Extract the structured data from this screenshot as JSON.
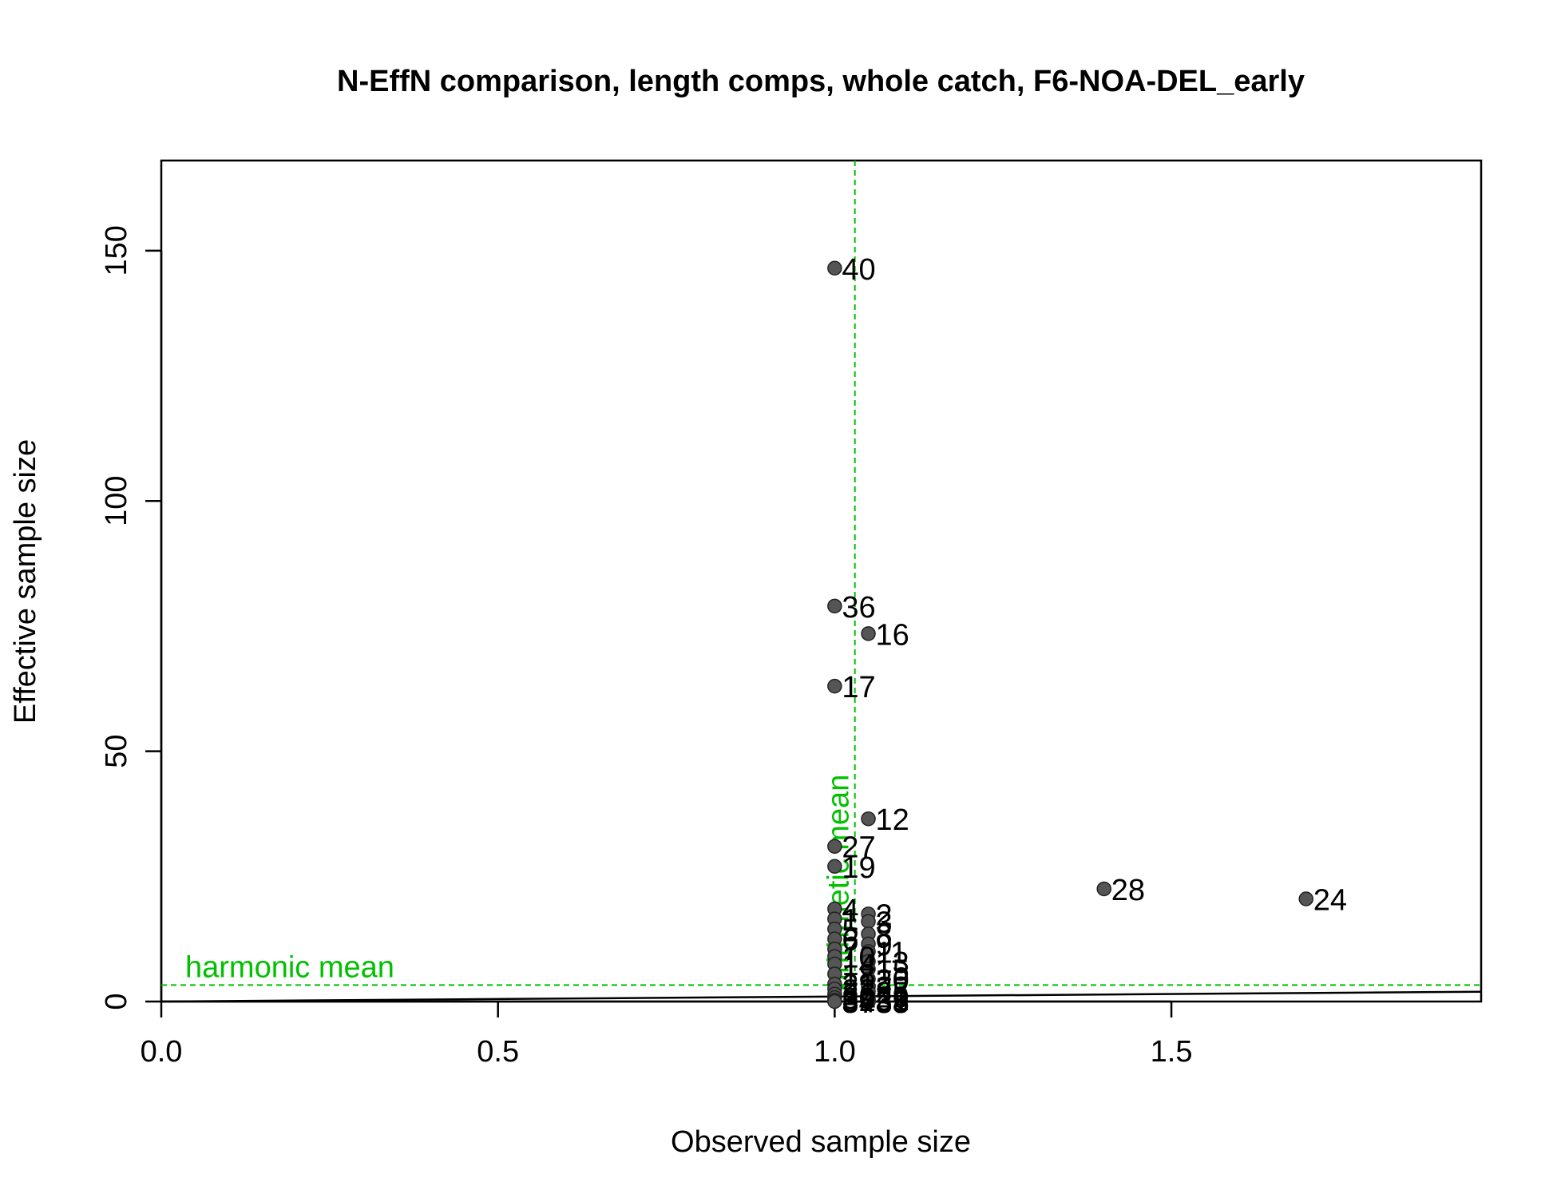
{
  "chart_data": {
    "type": "scatter",
    "title": "N-EffN comparison, length comps, whole catch, F6-NOA-DEL_early",
    "xlabel": "Observed sample size",
    "ylabel": "Effective sample size",
    "xlim": [
      0,
      1.96
    ],
    "ylim": [
      0,
      168
    ],
    "xticks": [
      0.0,
      0.5,
      1.0,
      1.5
    ],
    "xtick_labels": [
      "0.0",
      "0.5",
      "1.0",
      "1.5"
    ],
    "yticks": [
      0,
      50,
      100,
      150
    ],
    "ytick_labels": [
      "0",
      "50",
      "100",
      "150"
    ],
    "grid": false,
    "point_color": "#555555",
    "reference_color": "#00c000",
    "points": [
      {
        "x": 1.0,
        "y": 146.5,
        "label": "40"
      },
      {
        "x": 1.0,
        "y": 79.0,
        "label": "36"
      },
      {
        "x": 1.05,
        "y": 73.5,
        "label": "16"
      },
      {
        "x": 1.0,
        "y": 63.0,
        "label": "17"
      },
      {
        "x": 1.05,
        "y": 36.5,
        "label": "12"
      },
      {
        "x": 1.0,
        "y": 31.0,
        "label": "27"
      },
      {
        "x": 1.0,
        "y": 27.0,
        "label": "19"
      },
      {
        "x": 1.4,
        "y": 22.5,
        "label": "28"
      },
      {
        "x": 1.7,
        "y": 20.5,
        "label": "24"
      },
      {
        "x": 1.0,
        "y": 18.5,
        "label": "4"
      },
      {
        "x": 1.05,
        "y": 17.5,
        "label": "2"
      },
      {
        "x": 1.0,
        "y": 16.5,
        "label": "1"
      },
      {
        "x": 1.05,
        "y": 16.0,
        "label": "3"
      },
      {
        "x": 1.0,
        "y": 14.5,
        "label": "5"
      },
      {
        "x": 1.05,
        "y": 13.5,
        "label": "8"
      },
      {
        "x": 1.0,
        "y": 12.5,
        "label": "6"
      },
      {
        "x": 1.05,
        "y": 11.5,
        "label": "9"
      },
      {
        "x": 1.0,
        "y": 10.5,
        "label": "7"
      },
      {
        "x": 1.05,
        "y": 10.0,
        "label": "11"
      },
      {
        "x": 1.0,
        "y": 9.0,
        "label": "10"
      },
      {
        "x": 1.05,
        "y": 8.0,
        "label": "13"
      },
      {
        "x": 1.0,
        "y": 7.5,
        "label": "14"
      },
      {
        "x": 1.05,
        "y": 6.5,
        "label": "15"
      },
      {
        "x": 1.0,
        "y": 5.5,
        "label": "18"
      },
      {
        "x": 1.05,
        "y": 4.5,
        "label": "20"
      },
      {
        "x": 1.0,
        "y": 3.5,
        "label": "21"
      },
      {
        "x": 1.05,
        "y": 3.0,
        "label": "22"
      },
      {
        "x": 1.0,
        "y": 2.5,
        "label": "23"
      },
      {
        "x": 1.05,
        "y": 2.0,
        "label": "25"
      },
      {
        "x": 1.0,
        "y": 1.5,
        "label": "26"
      },
      {
        "x": 1.05,
        "y": 1.0,
        "label": "29"
      },
      {
        "x": 1.0,
        "y": 0.8,
        "label": "30"
      },
      {
        "x": 1.05,
        "y": 0.5,
        "label": "31"
      },
      {
        "x": 1.0,
        "y": 0.3,
        "label": "32"
      },
      {
        "x": 1.05,
        "y": 0.2,
        "label": "33"
      },
      {
        "x": 1.0,
        "y": 0.1,
        "label": "34"
      },
      {
        "x": 1.05,
        "y": 0.1,
        "label": "35"
      },
      {
        "x": 1.0,
        "y": 0.0,
        "label": "37"
      },
      {
        "x": 1.05,
        "y": 0.0,
        "label": "38"
      },
      {
        "x": 1.05,
        "y": 0.0,
        "label": "39"
      }
    ],
    "reference_lines": {
      "one_to_one": {
        "from": [
          0,
          0
        ],
        "to": [
          1.96,
          1.96
        ]
      },
      "harmonic_mean": {
        "y": 3.3,
        "label": "harmonic mean"
      },
      "arithmetic_mean": {
        "x": 1.03,
        "label": "arithmetic mean"
      }
    }
  }
}
